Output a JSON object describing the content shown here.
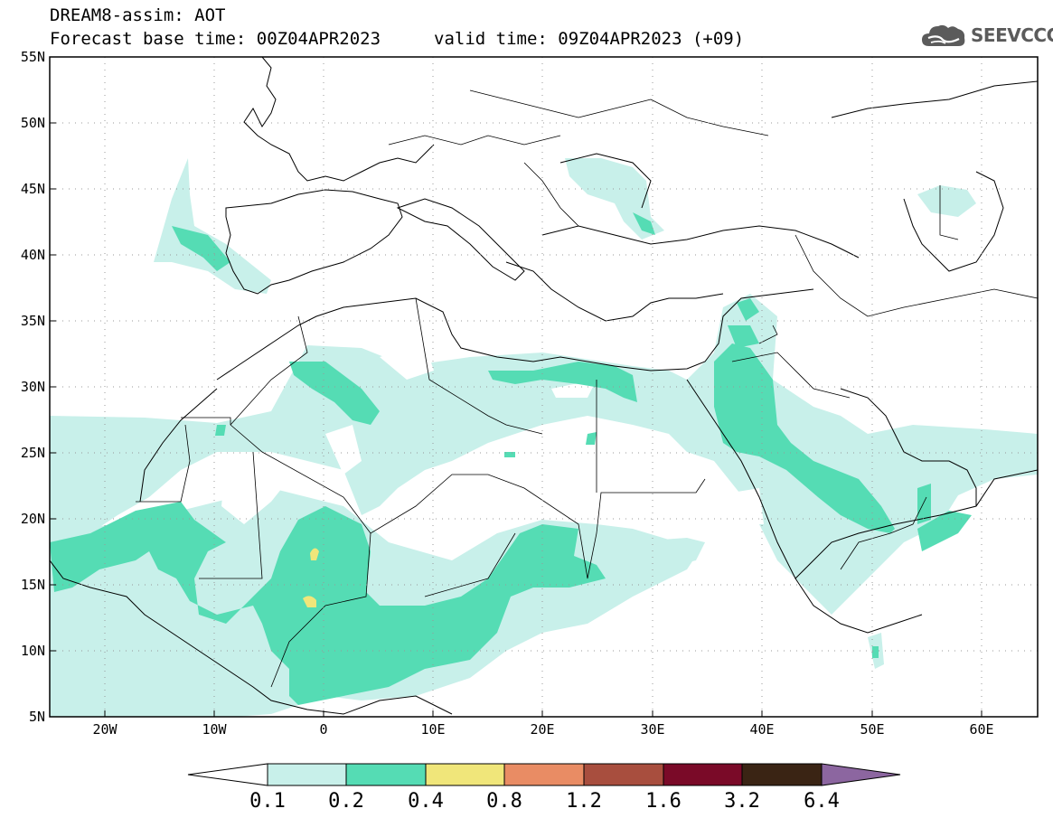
{
  "title": {
    "line1": "DREAM8-assim: AOT",
    "line2": "Forecast base time: 00Z04APR2023",
    "valid": "valid time: 09Z04APR2023 (+09)"
  },
  "logo": {
    "text": "SEEVCCC",
    "icon": "cloud-icon",
    "color": "#5b5b5b"
  },
  "map": {
    "lon_range": [
      -25,
      65
    ],
    "lat_range": [
      5,
      55
    ],
    "lat_ticks": [
      "55N",
      "50N",
      "45N",
      "40N",
      "35N",
      "30N",
      "25N",
      "20N",
      "15N",
      "10N",
      "5N"
    ],
    "lon_ticks": [
      "20W",
      "10W",
      "0",
      "10E",
      "20E",
      "30E",
      "40E",
      "50E",
      "60E"
    ],
    "grid": true
  },
  "colorbar": {
    "levels": [
      "0.1",
      "0.2",
      "0.4",
      "0.8",
      "1.2",
      "1.6",
      "3.2",
      "6.4"
    ],
    "colors": [
      "#ffffff",
      "#c8f0ea",
      "#55dcb4",
      "#f0e67a",
      "#e98c64",
      "#a84e3e",
      "#7a0a28",
      "#3a2414",
      "#8c66a0"
    ]
  }
}
